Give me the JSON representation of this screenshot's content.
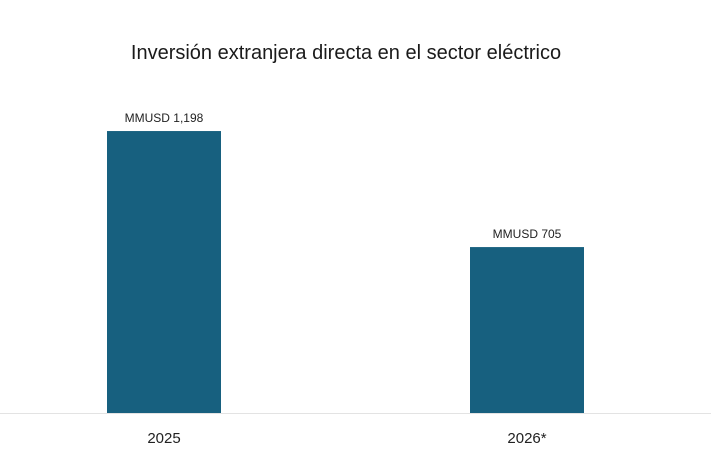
{
  "chart_data": {
    "type": "bar",
    "title": "Inversión extranjera directa en el sector eléctrico",
    "categories": [
      "2025",
      "2026*"
    ],
    "values": [
      1198,
      705
    ],
    "data_labels": [
      "MMUSD 1,198",
      "MMUSD 705"
    ],
    "xlabel": "",
    "ylabel": "",
    "ylim": [
      0,
      1400
    ],
    "grid": false,
    "legend": "none",
    "colors": {
      "bar": "#17607f",
      "axis": "#e3e3e3"
    }
  }
}
